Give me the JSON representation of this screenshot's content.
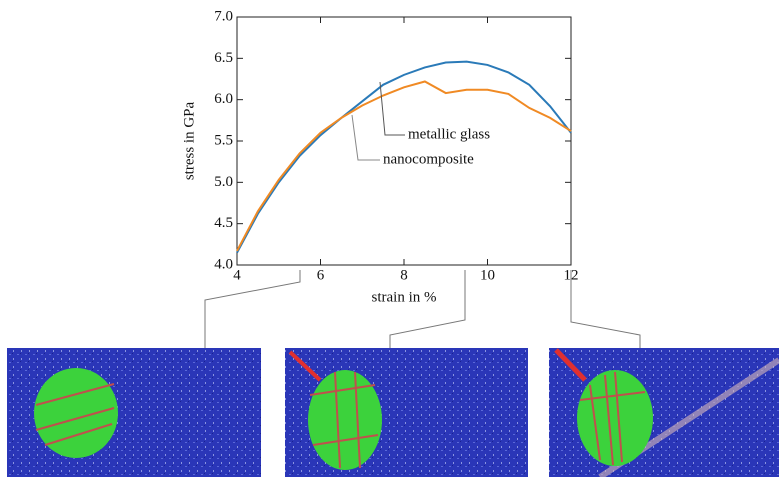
{
  "chart_data": {
    "type": "line",
    "x_label": "strain in %",
    "y_label": "stress in GPa",
    "x": [
      4,
      4.5,
      5,
      5.5,
      6,
      6.5,
      7,
      7.5,
      8,
      8.5,
      9,
      9.5,
      10,
      10.5,
      11,
      11.5,
      12
    ],
    "series": [
      {
        "name": "metallic glass",
        "color": "#2a7ab8",
        "values": [
          4.15,
          4.62,
          5.0,
          5.32,
          5.57,
          5.78,
          5.98,
          6.18,
          6.3,
          6.39,
          6.45,
          6.46,
          6.42,
          6.33,
          6.18,
          5.92,
          5.6
        ]
      },
      {
        "name": "nanocomposite",
        "color": "#f08a24",
        "values": [
          4.17,
          4.65,
          5.03,
          5.35,
          5.6,
          5.78,
          5.93,
          6.05,
          6.15,
          6.22,
          6.08,
          6.12,
          6.12,
          6.07,
          5.9,
          5.78,
          5.62
        ]
      }
    ],
    "xlim": [
      4,
      12
    ],
    "xticks": [
      4,
      6,
      8,
      10,
      12
    ],
    "ylim": [
      4,
      7
    ],
    "yticks": [
      {
        "value": 4,
        "label": "4.0"
      },
      4.5,
      {
        "value": 5,
        "label": "5.0"
      },
      5.5,
      {
        "value": 6,
        "label": "6.0"
      },
      6.5,
      {
        "value": 7,
        "label": "7.0"
      }
    ]
  }
}
